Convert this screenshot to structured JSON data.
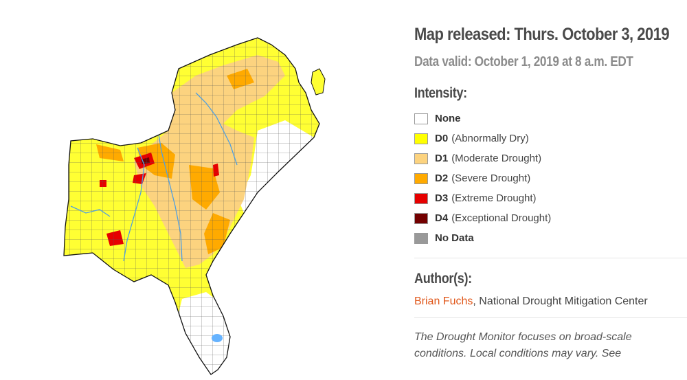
{
  "header": {
    "released": "Map released: Thurs. October 3, 2019",
    "valid": "Data valid: October 1, 2019 at 8 a.m. EDT"
  },
  "intensity": {
    "title": "Intensity:",
    "items": [
      {
        "code": "",
        "label": "None",
        "color": "#ffffff"
      },
      {
        "code": "D0",
        "label": "(Abnormally Dry)",
        "color": "#ffff00"
      },
      {
        "code": "D1",
        "label": "(Moderate Drought)",
        "color": "#fcd37f"
      },
      {
        "code": "D2",
        "label": "(Severe Drought)",
        "color": "#ffaa00"
      },
      {
        "code": "D3",
        "label": "(Extreme Drought)",
        "color": "#e60000"
      },
      {
        "code": "D4",
        "label": "(Exceptional Drought)",
        "color": "#730000"
      },
      {
        "code": "",
        "label": "No Data",
        "color": "#999999"
      }
    ]
  },
  "author": {
    "title": "Author(s):",
    "name": "Brian Fuchs",
    "affiliation": ", National Drought Mitigation Center"
  },
  "note": "The Drought Monitor focuses on broad-scale conditions. Local conditions may vary. See"
}
